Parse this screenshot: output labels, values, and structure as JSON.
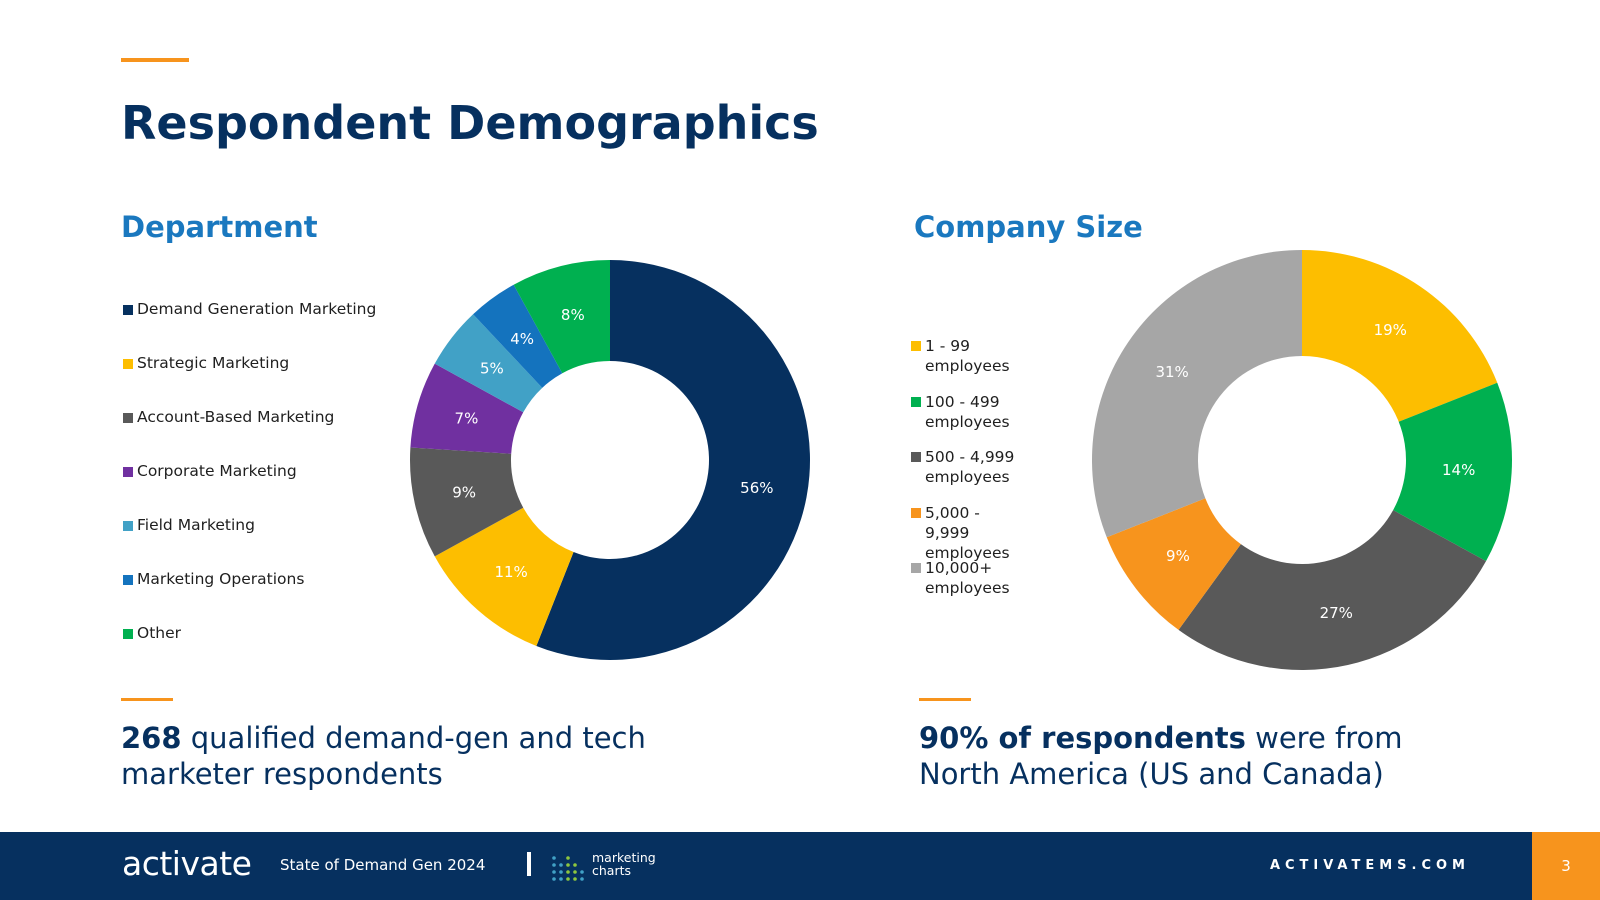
{
  "title": "Respondent Demographics",
  "colors": {
    "navy": "#06305F",
    "blue_heading": "#1A78BF",
    "orange_accent": "#F7941D"
  },
  "chart_data": [
    {
      "type": "pie",
      "variant": "donut",
      "title": "Department",
      "categories": [
        "Demand Generation Marketing",
        "Strategic Marketing",
        "Account-Based Marketing",
        "Corporate Marketing",
        "Field Marketing",
        "Marketing Operations",
        "Other"
      ],
      "values": [
        56,
        11,
        9,
        7,
        5,
        4,
        8
      ],
      "labels": [
        "56%",
        "11%",
        "9%",
        "7%",
        "5%",
        "4%",
        "8%"
      ],
      "colors": [
        "#06305F",
        "#FDBE00",
        "#595959",
        "#7030A0",
        "#41A1C6",
        "#1473BE",
        "#00B050"
      ],
      "legend_position": "left"
    },
    {
      "type": "pie",
      "variant": "donut",
      "title": "Company Size",
      "categories": [
        "1 - 99 employees",
        "100 - 499 employees",
        "500 - 4,999 employees",
        "5,000 - 9,999 employees",
        "10,000+ employees"
      ],
      "values": [
        19,
        14,
        27,
        9,
        31
      ],
      "labels": [
        "19%",
        "14%",
        "27%",
        "9%",
        "31%"
      ],
      "colors": [
        "#FDBE00",
        "#00B050",
        "#595959",
        "#F7941D",
        "#A6A6A6"
      ],
      "legend_position": "left"
    }
  ],
  "stats": {
    "left_bold": "268",
    "left_text": " qualified demand-gen and tech marketer respondents",
    "right_bold": "90% of respondents",
    "right_text": " were from North America (US and Canada)"
  },
  "footer": {
    "logo": "activate",
    "report": "State of Demand Gen 2024",
    "partner_line1": "marketing",
    "partner_line2": "charts",
    "site": "ACTIVATEMS.COM",
    "page": "3"
  }
}
